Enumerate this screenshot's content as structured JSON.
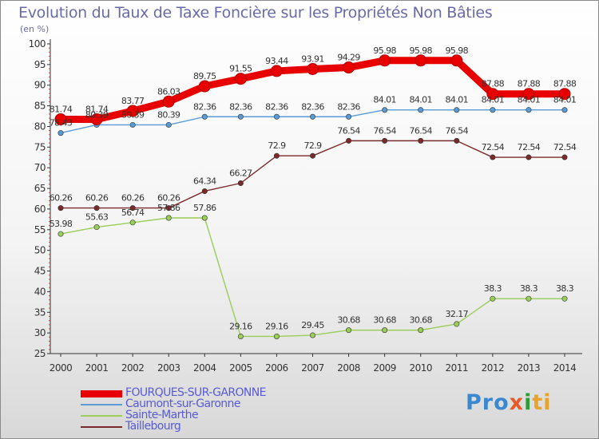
{
  "chart_data": {
    "type": "line",
    "title": "Evolution du Taux de Taxe Foncière sur les Propriétés Non Bâties",
    "subtitle": "(en %)",
    "xlabel": "",
    "ylabel": "",
    "x": [
      "2000",
      "2001",
      "2002",
      "2003",
      "2004",
      "2005",
      "2006",
      "2007",
      "2008",
      "2009",
      "2010",
      "2011",
      "2012",
      "2013",
      "2014"
    ],
    "ylim": [
      25,
      100
    ],
    "yticks": [
      "25",
      "30",
      "35",
      "40",
      "45",
      "50",
      "55",
      "60",
      "65",
      "70",
      "75",
      "80",
      "85",
      "90",
      "95",
      "100"
    ],
    "grid": false,
    "legend_position": "bottom-left",
    "series": [
      {
        "name": "FOURQUES-SUR-GARONNE",
        "color": "#e80000",
        "values": [
          81.74,
          81.74,
          83.77,
          86.03,
          89.75,
          91.55,
          93.44,
          93.91,
          94.29,
          95.98,
          95.98,
          95.98,
          87.88,
          87.88,
          87.88
        ],
        "labels": [
          "81.74",
          "81.74",
          "83.77",
          "86.03",
          "89.75",
          "91.55",
          "93.44",
          "93.91",
          "94.29",
          "95.98",
          "95.98",
          "95.98",
          "87.88",
          "87.88",
          "87.88"
        ]
      },
      {
        "name": "Caumont-sur-Garonne",
        "color": "#5b9bd5",
        "values": [
          78.43,
          80.39,
          80.39,
          80.39,
          82.36,
          82.36,
          82.36,
          82.36,
          82.36,
          84.01,
          84.01,
          84.01,
          84.01,
          84.01,
          84.01
        ],
        "labels": [
          "78.43",
          "80.39",
          "80.39",
          "80.39",
          "82.36",
          "82.36",
          "82.36",
          "82.36",
          "82.36",
          "84.01",
          "84.01",
          "84.01",
          "84.01",
          "84.01",
          "84.01"
        ]
      },
      {
        "name": "Sainte-Marthe",
        "color": "#9acd5a",
        "values": [
          53.98,
          55.63,
          56.74,
          57.86,
          57.86,
          29.16,
          29.16,
          29.45,
          30.68,
          30.68,
          30.68,
          32.17,
          38.3,
          38.3,
          38.3
        ],
        "labels": [
          "53.98",
          "55.63",
          "56.74",
          "57.86",
          "57.86",
          "29.16",
          "29.16",
          "29.45",
          "30.68",
          "30.68",
          "30.68",
          "32.17",
          "38.3",
          "38.3",
          "38.3"
        ]
      },
      {
        "name": "Taillebourg",
        "color": "#7a2a2a",
        "values": [
          60.26,
          60.26,
          60.26,
          60.26,
          64.34,
          66.27,
          72.9,
          72.9,
          76.54,
          76.54,
          76.54,
          76.54,
          72.54,
          72.54,
          72.54
        ],
        "labels": [
          "60.26",
          "60.26",
          "60.26",
          "60.26",
          "64.34",
          "66.27",
          "72.9",
          "72.9",
          "76.54",
          "76.54",
          "76.54",
          "76.54",
          "72.54",
          "72.54",
          "72.54"
        ]
      }
    ]
  },
  "brand": {
    "p1": "Pro",
    "p2": "x",
    "p3": "i",
    "p4": "ti"
  }
}
